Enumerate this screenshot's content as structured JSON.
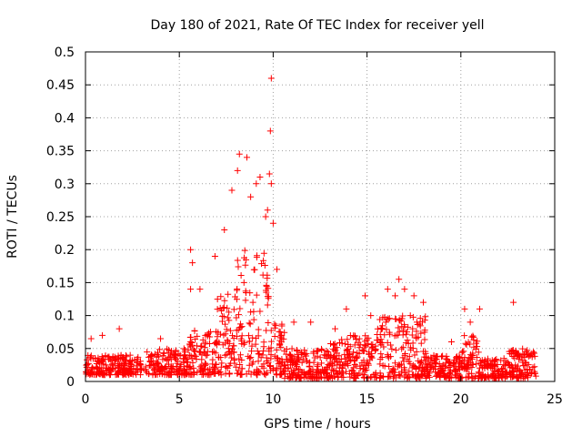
{
  "chart_data": {
    "type": "scatter",
    "title": "Day 180 of 2021, Rate Of TEC Index for receiver yell",
    "xlabel": "GPS time / hours",
    "ylabel": "ROTI / TECUs",
    "xlim": [
      0,
      25
    ],
    "ylim": [
      0,
      0.5
    ],
    "xticks": [
      0,
      5,
      10,
      15,
      20,
      25
    ],
    "yticks": [
      0,
      0.05,
      0.1,
      0.15,
      0.2,
      0.25,
      0.3,
      0.35,
      0.4,
      0.45,
      0.5
    ],
    "grid": true,
    "marker": "+",
    "color": "#ff0000",
    "series": [
      {
        "name": "ROTI",
        "points": [
          [
            0.3,
            0.065
          ],
          [
            0.9,
            0.07
          ],
          [
            1.8,
            0.08
          ],
          [
            4.0,
            0.065
          ],
          [
            5.6,
            0.2
          ],
          [
            5.7,
            0.18
          ],
          [
            5.6,
            0.14
          ],
          [
            6.1,
            0.14
          ],
          [
            6.9,
            0.19
          ],
          [
            7.4,
            0.23
          ],
          [
            7.8,
            0.29
          ],
          [
            8.1,
            0.32
          ],
          [
            8.2,
            0.345
          ],
          [
            8.6,
            0.34
          ],
          [
            8.8,
            0.28
          ],
          [
            9.1,
            0.3
          ],
          [
            9.3,
            0.31
          ],
          [
            9.6,
            0.25
          ],
          [
            9.7,
            0.26
          ],
          [
            9.8,
            0.315
          ],
          [
            9.9,
            0.3
          ],
          [
            9.85,
            0.38
          ],
          [
            9.9,
            0.46
          ],
          [
            10.0,
            0.24
          ],
          [
            10.2,
            0.17
          ],
          [
            11.1,
            0.09
          ],
          [
            12.0,
            0.09
          ],
          [
            13.3,
            0.08
          ],
          [
            13.9,
            0.11
          ],
          [
            14.9,
            0.13
          ],
          [
            15.2,
            0.1
          ],
          [
            16.1,
            0.14
          ],
          [
            16.5,
            0.13
          ],
          [
            16.7,
            0.155
          ],
          [
            17.0,
            0.14
          ],
          [
            17.5,
            0.13
          ],
          [
            18.0,
            0.12
          ],
          [
            19.5,
            0.06
          ],
          [
            20.2,
            0.11
          ],
          [
            20.5,
            0.09
          ],
          [
            21.0,
            0.11
          ],
          [
            22.8,
            0.12
          ],
          [
            23.3,
            0.04
          ],
          [
            23.7,
            0.04
          ]
        ],
        "bands": [
          {
            "x": [
              0.0,
              3.0
            ],
            "y": [
              0.01,
              0.04
            ]
          },
          {
            "x": [
              3.2,
              5.5
            ],
            "y": [
              0.01,
              0.05
            ]
          },
          {
            "x": [
              5.5,
              7.0
            ],
            "y": [
              0.01,
              0.08
            ]
          },
          {
            "x": [
              7.0,
              8.0
            ],
            "y": [
              0.01,
              0.14
            ]
          },
          {
            "x": [
              8.0,
              9.8
            ],
            "y": [
              0.01,
              0.2
            ]
          },
          {
            "x": [
              9.8,
              10.6
            ],
            "y": [
              0.01,
              0.1
            ]
          },
          {
            "x": [
              10.6,
              13.0
            ],
            "y": [
              0.005,
              0.05
            ]
          },
          {
            "x": [
              13.0,
              15.5
            ],
            "y": [
              0.005,
              0.07
            ]
          },
          {
            "x": [
              15.5,
              18.2
            ],
            "y": [
              0.005,
              0.1
            ]
          },
          {
            "x": [
              18.2,
              20.0
            ],
            "y": [
              0.005,
              0.04
            ]
          },
          {
            "x": [
              20.0,
              21.0
            ],
            "y": [
              0.005,
              0.07
            ]
          },
          {
            "x": [
              21.0,
              22.5
            ],
            "y": [
              0.005,
              0.035
            ]
          },
          {
            "x": [
              22.5,
              24.0
            ],
            "y": [
              0.005,
              0.05
            ]
          }
        ]
      }
    ]
  }
}
